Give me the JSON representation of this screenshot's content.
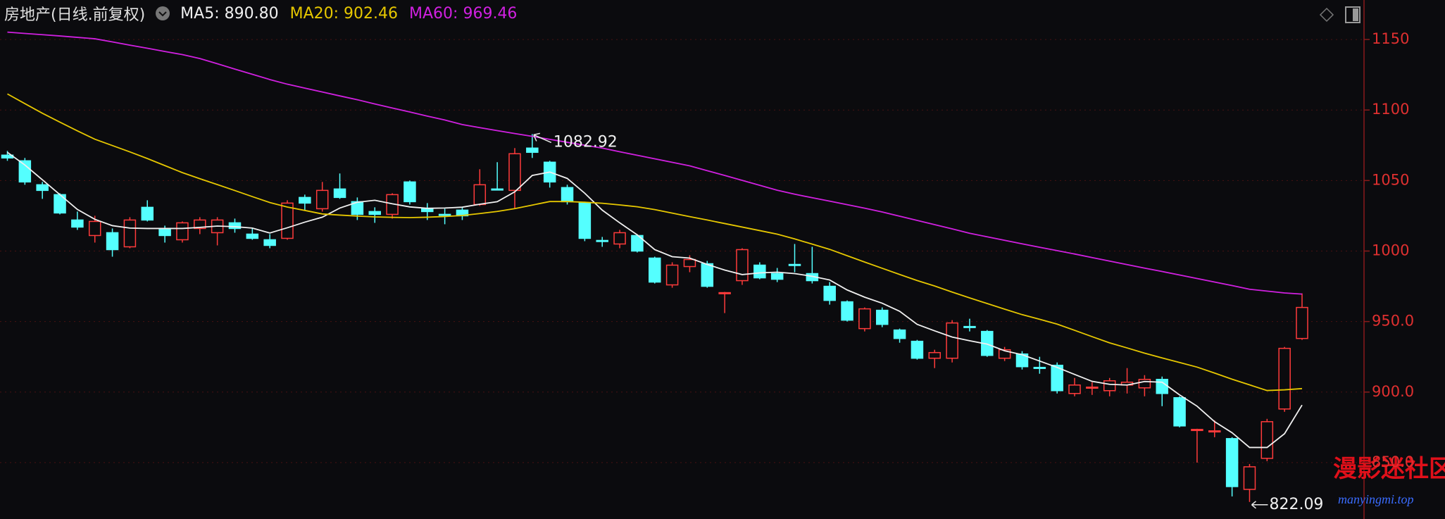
{
  "chart_data": {
    "type": "candlestick",
    "title": "房地产(日线.前复权)",
    "ylim": [
      810,
      1178
    ],
    "yticks": [
      {
        "value": 850,
        "label": "850.0"
      },
      {
        "value": 900,
        "label": "900.0"
      },
      {
        "value": 950,
        "label": "950.0"
      },
      1000,
      1050,
      1100,
      1150
    ],
    "grid": true,
    "candles": {
      "up_color": "#ff3b3b",
      "down_color": "#54ffff",
      "open": [
        1068,
        1064,
        1047,
        1040,
        1022,
        1011,
        1013,
        1003,
        1031,
        1016,
        1008,
        1016,
        1013,
        1020,
        1012,
        1008,
        1009,
        1038,
        1030,
        1044,
        1035,
        1028,
        1026,
        1049,
        1030,
        1026,
        1029,
        1033,
        1044,
        1043,
        1073,
        1063,
        1045,
        1034,
        1007.5,
        1005,
        1011,
        995,
        976,
        989,
        991,
        970,
        979,
        990,
        984,
        990.5,
        984,
        975,
        964,
        945,
        958,
        944,
        936,
        924,
        924,
        946.5,
        943,
        924,
        927,
        917.5,
        919,
        899,
        903,
        901,
        905,
        903,
        909,
        896,
        873,
        872,
        867,
        831,
        853,
        888,
        938
      ],
      "high": [
        1071,
        1066,
        1049,
        1041,
        1028,
        1025,
        1016,
        1024,
        1036,
        1018,
        1021,
        1024,
        1024,
        1023,
        1016,
        1012,
        1036,
        1040,
        1049,
        1055,
        1038,
        1031,
        1041,
        1050,
        1034,
        1030,
        1031,
        1058,
        1063,
        1073,
        1082.92,
        1064,
        1047,
        1035,
        1010,
        1015,
        1012,
        996,
        992,
        997,
        993,
        971,
        1002,
        992,
        988,
        1005,
        1003,
        978,
        965,
        960,
        960,
        945,
        937,
        930,
        951,
        952,
        944,
        932,
        929,
        925,
        921,
        910,
        907,
        910,
        917,
        912,
        911,
        897,
        874,
        880,
        868,
        849,
        881,
        932,
        970
      ],
      "low": [
        1064,
        1047,
        1037,
        1026,
        1015,
        1006,
        996,
        1002,
        1021,
        1006,
        1006,
        1012,
        1004,
        1013,
        1008,
        1002,
        1008,
        1029,
        1028,
        1037,
        1022,
        1020,
        1023,
        1033,
        1022,
        1019,
        1022,
        1032,
        1043,
        1030,
        1066,
        1045,
        1033,
        1007,
        1003,
        1002,
        999,
        977,
        974,
        985,
        974,
        956,
        976,
        980,
        978,
        985,
        977,
        962,
        950,
        943,
        946,
        935,
        923,
        917,
        921,
        943,
        925,
        922,
        916,
        913,
        899,
        897,
        898,
        897,
        899,
        897,
        890,
        875,
        850,
        868,
        826,
        822.09,
        851,
        886,
        937
      ],
      "close": [
        1066,
        1049,
        1043,
        1027,
        1017,
        1021,
        1001,
        1022,
        1022,
        1011,
        1020,
        1022,
        1022,
        1016,
        1009,
        1004,
        1034,
        1034,
        1043,
        1038,
        1026,
        1026,
        1040,
        1035,
        1028,
        1025.5,
        1025,
        1047,
        1043.5,
        1069,
        1070,
        1049,
        1035,
        1009,
        1007,
        1013,
        1000,
        978,
        990,
        994,
        975,
        970.5,
        1001,
        981,
        980,
        990,
        979,
        965,
        951,
        959,
        948,
        938,
        924,
        928,
        949,
        946,
        926,
        930,
        918,
        917,
        901,
        905,
        903.5,
        908,
        907,
        909,
        899,
        876,
        873.5,
        872.5,
        833,
        847,
        879,
        931,
        960
      ]
    },
    "series": [
      {
        "name": "MA5: 890.80",
        "color": "#f0f0f0",
        "values": [
          1070,
          1061,
          1050.5,
          1040,
          1029.5,
          1022.5,
          1018,
          1016.3,
          1016,
          1016,
          1016,
          1016.8,
          1017.7,
          1017.3,
          1016.3,
          1012.8,
          1016.5,
          1020.5,
          1024,
          1030.5,
          1034.6,
          1036,
          1033.5,
          1031.3,
          1030.3,
          1030.5,
          1031.1,
          1033.2,
          1035,
          1042,
          1053.6,
          1056,
          1051.5,
          1041,
          1029,
          1020,
          1011.5,
          1001,
          996,
          995,
          990.5,
          986.5,
          983.3,
          984.5,
          985,
          984,
          982.1,
          979.5,
          972.4,
          967.3,
          963,
          957.3,
          948,
          943.4,
          939,
          936.4,
          934,
          929.3,
          926.5,
          922,
          917.5,
          912.5,
          907.6,
          905.5,
          905,
          907.5,
          907,
          898,
          890,
          879,
          871.2,
          860.7,
          860.7,
          870.5,
          890.8
        ]
      },
      {
        "name": "MA20: 902.46",
        "color": "#e6c700",
        "values": [
          1111.4,
          1104.5,
          1097.7,
          1091.4,
          1085.2,
          1079.3,
          1074.8,
          1070.3,
          1065.6,
          1060.6,
          1055.6,
          1051.3,
          1047.1,
          1042.9,
          1038.6,
          1034.4,
          1031.2,
          1028.8,
          1026.3,
          1025.5,
          1024.8,
          1024.2,
          1023.9,
          1023.7,
          1024,
          1024.5,
          1025.2,
          1026.6,
          1028.1,
          1030.1,
          1032.6,
          1035.1,
          1035.1,
          1034.6,
          1033.9,
          1032.7,
          1031.4,
          1029.4,
          1026.9,
          1024.4,
          1022,
          1019.5,
          1017,
          1014.5,
          1012,
          1008.6,
          1004.9,
          1001.2,
          996.7,
          992.2,
          987.8,
          983.4,
          979.1,
          975.2,
          970.9,
          966.8,
          962.8,
          958.8,
          954.9,
          951.6,
          948.2,
          943.8,
          939.3,
          934.9,
          931.3,
          927.6,
          924.2,
          921,
          917.7,
          913.5,
          909.1,
          905.1,
          901.1,
          901.6,
          902.46
        ]
      },
      {
        "name": "MA60: 969.46",
        "color": "#d020e0",
        "values": [
          1155.2,
          1154.3,
          1153.4,
          1152.5,
          1151.5,
          1150.5,
          1148.3,
          1146,
          1143.8,
          1141.5,
          1139.3,
          1136.5,
          1132.8,
          1129,
          1125.3,
          1121.6,
          1118.3,
          1115.5,
          1112.8,
          1110,
          1107.3,
          1104.3,
          1101.4,
          1098.6,
          1095.7,
          1092.9,
          1089.7,
          1087.5,
          1085.4,
          1083.3,
          1081.3,
          1079.2,
          1077.1,
          1075,
          1073,
          1070.4,
          1067.9,
          1065.4,
          1062.9,
          1060.4,
          1057,
          1053.6,
          1050.1,
          1046.6,
          1043.1,
          1040.3,
          1037.8,
          1035.4,
          1032.9,
          1030.4,
          1027.7,
          1024.7,
          1021.7,
          1018.7,
          1015.7,
          1012.6,
          1010.1,
          1007.6,
          1005.1,
          1002.7,
          1000.3,
          997.9,
          995.4,
          992.9,
          990.4,
          987.9,
          985.5,
          983,
          980.5,
          978,
          975.5,
          972.9,
          971.6,
          970.3,
          969.46
        ]
      }
    ],
    "watermark": {
      "text": "漫影迷社区",
      "url": "manyingmi.top"
    }
  }
}
